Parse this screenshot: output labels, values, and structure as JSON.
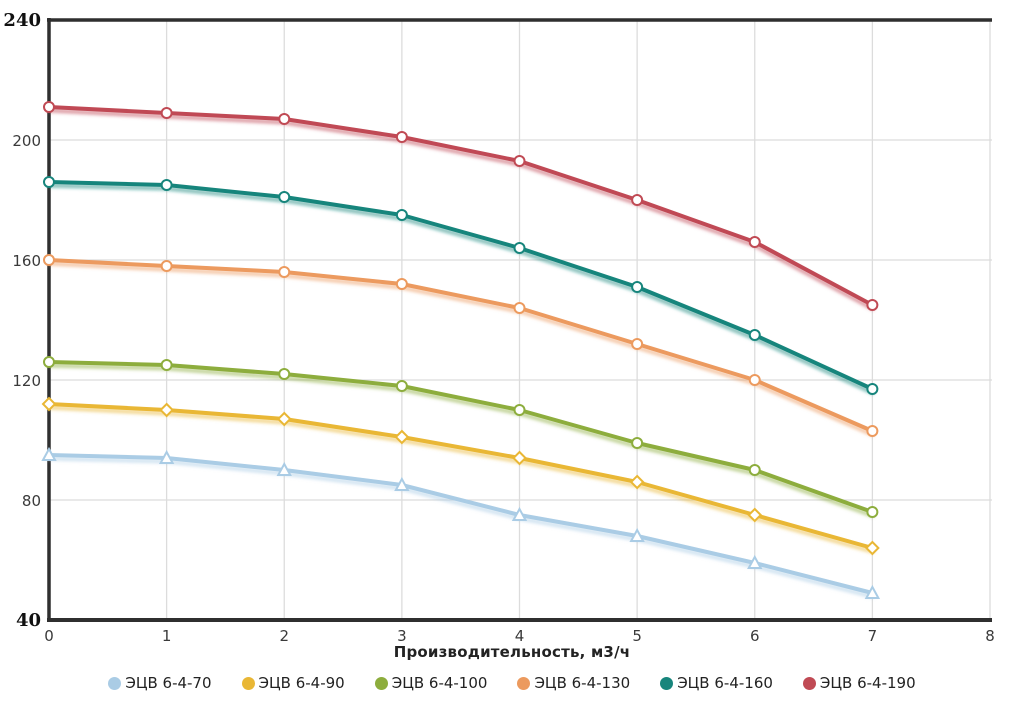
{
  "chart_data": {
    "type": "line",
    "title": "",
    "xlabel": "Производительность, м3/ч",
    "ylabel": "",
    "xlim": [
      0,
      8
    ],
    "ylim": [
      40,
      240
    ],
    "x_ticks": [
      0,
      1,
      2,
      3,
      4,
      5,
      6,
      7,
      8
    ],
    "y_ticks": [
      240,
      200,
      160,
      120,
      80,
      40
    ],
    "grid": true,
    "legend_position": "bottom",
    "x": [
      0,
      1,
      2,
      3,
      4,
      5,
      6,
      7
    ],
    "series": [
      {
        "name": "ЭЦВ 6-4-70",
        "color": "#aacce5",
        "marker": "triangle",
        "values": [
          95,
          94,
          90,
          85,
          75,
          68,
          59,
          49
        ]
      },
      {
        "name": "ЭЦВ 6-4-90",
        "color": "#e9b735",
        "marker": "diamond",
        "values": [
          112,
          110,
          107,
          101,
          94,
          86,
          75,
          64
        ]
      },
      {
        "name": "ЭЦВ 6-4-100",
        "color": "#8dad3d",
        "marker": "circle",
        "values": [
          126,
          125,
          122,
          118,
          110,
          99,
          90,
          76
        ]
      },
      {
        "name": "ЭЦВ 6-4-130",
        "color": "#ec9a5e",
        "marker": "circle",
        "values": [
          160,
          158,
          156,
          152,
          144,
          132,
          120,
          103
        ]
      },
      {
        "name": "ЭЦВ 6-4-160",
        "color": "#17857c",
        "marker": "circle",
        "values": [
          186,
          185,
          181,
          175,
          164,
          151,
          135,
          117
        ]
      },
      {
        "name": "ЭЦВ 6-4-190",
        "color": "#c04a54",
        "marker": "circle",
        "values": [
          211,
          209,
          207,
          201,
          193,
          180,
          166,
          145
        ]
      }
    ],
    "colors": {
      "grid": "#dcdcdc",
      "axis": "#2f2f2f",
      "background": "#ffffff",
      "marker_fill": "#ffffff"
    }
  }
}
